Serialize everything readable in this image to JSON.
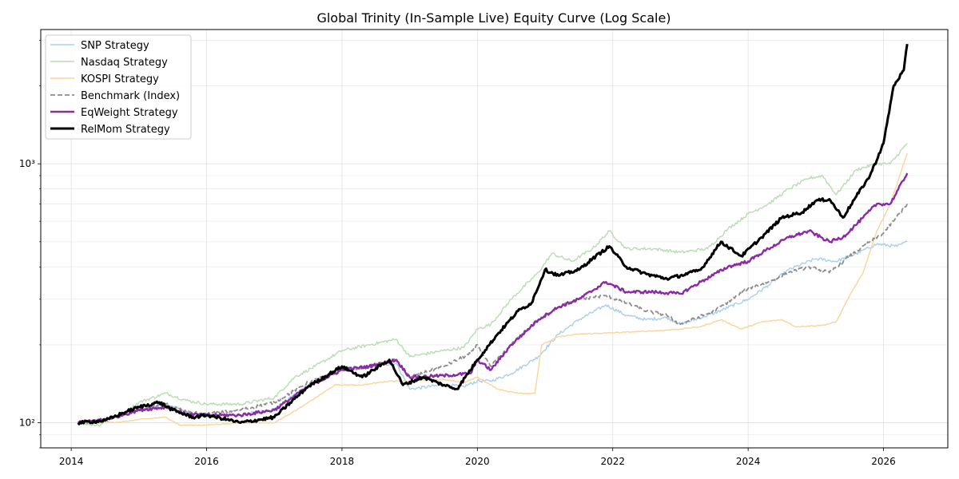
{
  "chart_data": {
    "type": "line",
    "title": "Global Trinity (In-Sample Live) Equity Curve (Log Scale)",
    "xlabel": "",
    "ylabel": "",
    "yscale": "log",
    "xlim": [
      2013.55,
      2026.95
    ],
    "ylim": [
      80,
      3300
    ],
    "x_ticks": [
      2014,
      2016,
      2018,
      2020,
      2022,
      2024,
      2026
    ],
    "x_tick_labels": [
      "2014",
      "2016",
      "2018",
      "2020",
      "2022",
      "2024",
      "2026"
    ],
    "y_ticks": [
      100,
      1000
    ],
    "y_tick_labels": [
      "10²",
      "10³"
    ],
    "grid": true,
    "legend_position": "top-left",
    "series": [
      {
        "name": "SNP Strategy",
        "color": "#a9cfee",
        "style": "solid",
        "x": [
          2014.1,
          2014.5,
          2014.8,
          2015.0,
          2015.4,
          2015.7,
          2016.0,
          2016.5,
          2017.0,
          2017.5,
          2018.0,
          2018.4,
          2018.8,
          2019.0,
          2019.5,
          2019.8,
          2020.0,
          2020.2,
          2020.5,
          2020.9,
          2021.2,
          2021.5,
          2021.9,
          2022.2,
          2022.5,
          2022.8,
          2023.0,
          2023.5,
          2024.0,
          2024.3,
          2024.6,
          2025.0,
          2025.3,
          2025.6,
          2025.9,
          2026.2,
          2026.35
        ],
        "values": [
          100,
          103,
          108,
          113,
          118,
          110,
          106,
          107,
          113,
          140,
          160,
          165,
          170,
          135,
          140,
          138,
          145,
          145,
          155,
          180,
          220,
          250,
          285,
          260,
          250,
          255,
          240,
          265,
          300,
          340,
          390,
          430,
          420,
          450,
          490,
          480,
          500
        ]
      },
      {
        "name": "Nasdaq Strategy",
        "color": "#b9dcb4",
        "style": "solid",
        "x": [
          2014.1,
          2014.4,
          2014.8,
          2015.0,
          2015.4,
          2015.7,
          2016.0,
          2016.5,
          2017.0,
          2017.3,
          2017.6,
          2018.0,
          2018.4,
          2018.8,
          2019.0,
          2019.5,
          2019.8,
          2020.0,
          2020.2,
          2020.5,
          2020.9,
          2021.1,
          2021.4,
          2021.7,
          2021.95,
          2022.2,
          2022.6,
          2023.0,
          2023.4,
          2023.7,
          2024.0,
          2024.3,
          2024.6,
          2024.9,
          2025.1,
          2025.3,
          2025.6,
          2025.9,
          2026.1,
          2026.35
        ],
        "values": [
          100,
          98,
          110,
          120,
          130,
          122,
          118,
          118,
          125,
          150,
          165,
          190,
          200,
          210,
          180,
          190,
          195,
          230,
          240,
          300,
          380,
          450,
          420,
          470,
          550,
          470,
          470,
          455,
          470,
          560,
          640,
          700,
          800,
          880,
          900,
          760,
          950,
          1000,
          1000,
          1200
        ]
      },
      {
        "name": "KOSPI Strategy",
        "color": "#fbd49c",
        "style": "solid",
        "x": [
          2014.1,
          2014.5,
          2014.8,
          2015.0,
          2015.4,
          2015.6,
          2016.0,
          2016.5,
          2017.0,
          2017.4,
          2017.9,
          2018.3,
          2018.7,
          2019.0,
          2019.5,
          2019.8,
          2020.0,
          2020.3,
          2020.6,
          2020.85,
          2020.95,
          2021.2,
          2021.5,
          2021.9,
          2022.4,
          2022.8,
          2023.0,
          2023.3,
          2023.6,
          2023.9,
          2024.2,
          2024.5,
          2024.7,
          2025.1,
          2025.3,
          2025.5,
          2025.7,
          2025.9,
          2026.1,
          2026.35
        ],
        "values": [
          100,
          100,
          101,
          103,
          105,
          98,
          98,
          100,
          100,
          115,
          140,
          140,
          145,
          145,
          147,
          143,
          150,
          135,
          130,
          130,
          200,
          215,
          220,
          222,
          225,
          228,
          230,
          235,
          250,
          230,
          245,
          250,
          235,
          238,
          245,
          310,
          380,
          550,
          700,
          1100
        ]
      },
      {
        "name": "Benchmark (Index)",
        "color": "#8c8c8c",
        "style": "dashed",
        "x": [
          2014.1,
          2014.5,
          2014.8,
          2015.0,
          2015.4,
          2015.7,
          2016.0,
          2016.5,
          2017.0,
          2017.5,
          2018.0,
          2018.4,
          2018.8,
          2019.0,
          2019.5,
          2019.9,
          2020.0,
          2020.2,
          2020.5,
          2020.9,
          2021.2,
          2021.5,
          2021.9,
          2022.2,
          2022.5,
          2022.8,
          2023.0,
          2023.5,
          2024.0,
          2024.3,
          2024.6,
          2024.9,
          2025.2,
          2025.5,
          2025.8,
          2026.0,
          2026.35
        ],
        "values": [
          100,
          102,
          108,
          112,
          118,
          110,
          108,
          112,
          120,
          143,
          160,
          165,
          175,
          150,
          165,
          185,
          200,
          165,
          200,
          250,
          280,
          300,
          310,
          290,
          270,
          260,
          240,
          270,
          330,
          350,
          380,
          400,
          380,
          440,
          500,
          540,
          700
        ]
      },
      {
        "name": "EqWeight Strategy",
        "color": "#8a2aa5",
        "style": "solid",
        "x": [
          2014.1,
          2014.5,
          2014.8,
          2015.0,
          2015.4,
          2015.7,
          2016.0,
          2016.5,
          2017.0,
          2017.5,
          2018.0,
          2018.4,
          2018.8,
          2019.0,
          2019.5,
          2019.9,
          2020.0,
          2020.2,
          2020.5,
          2020.9,
          2021.2,
          2021.5,
          2021.9,
          2022.2,
          2022.6,
          2023.0,
          2023.3,
          2023.7,
          2024.0,
          2024.3,
          2024.6,
          2024.9,
          2025.2,
          2025.4,
          2025.7,
          2025.9,
          2026.1,
          2026.35
        ],
        "values": [
          100,
          103,
          108,
          112,
          115,
          108,
          107,
          107,
          112,
          138,
          160,
          165,
          175,
          150,
          152,
          155,
          175,
          160,
          200,
          250,
          280,
          300,
          350,
          320,
          320,
          315,
          350,
          400,
          420,
          470,
          520,
          550,
          500,
          520,
          620,
          700,
          700,
          920
        ]
      },
      {
        "name": "RelMom Strategy",
        "color": "#000000",
        "style": "solid",
        "x": [
          2014.1,
          2014.5,
          2014.8,
          2015.0,
          2015.3,
          2015.5,
          2015.8,
          2016.0,
          2016.3,
          2016.5,
          2017.0,
          2017.5,
          2018.0,
          2018.3,
          2018.7,
          2018.9,
          2019.2,
          2019.5,
          2019.7,
          2020.0,
          2020.3,
          2020.6,
          2020.8,
          2021.0,
          2021.2,
          2021.5,
          2021.7,
          2021.95,
          2022.2,
          2022.5,
          2022.8,
          2023.0,
          2023.3,
          2023.6,
          2023.9,
          2024.2,
          2024.5,
          2024.8,
          2025.0,
          2025.2,
          2025.4,
          2025.6,
          2025.8,
          2026.0,
          2026.15,
          2026.3,
          2026.35
        ],
        "values": [
          100,
          102,
          110,
          115,
          120,
          112,
          105,
          107,
          103,
          100,
          105,
          138,
          165,
          150,
          175,
          140,
          150,
          140,
          135,
          175,
          220,
          270,
          290,
          390,
          370,
          390,
          430,
          480,
          400,
          375,
          360,
          370,
          390,
          500,
          440,
          520,
          620,
          650,
          720,
          730,
          620,
          750,
          900,
          1200,
          2000,
          2300,
          2900
        ]
      }
    ]
  }
}
